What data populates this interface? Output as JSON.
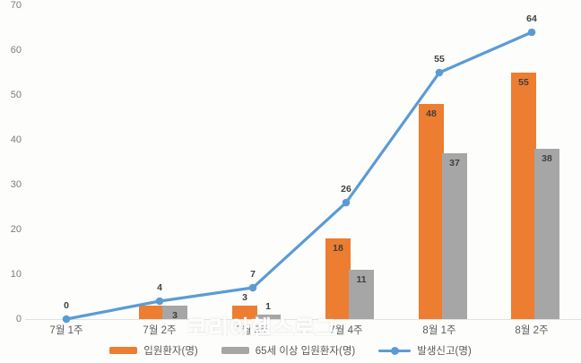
{
  "chart_data": {
    "type": "combo-bar-line",
    "title": "",
    "categories": [
      "7월 1주",
      "7월 2주",
      "7월 3주",
      "7월 4주",
      "8월 1주",
      "8월 2주"
    ],
    "series": [
      {
        "name": "입원환자(명)",
        "type": "bar",
        "color": "#ED7D31",
        "values": [
          0,
          3,
          3,
          18,
          48,
          55
        ],
        "labels": [
          "",
          "",
          "3",
          "18",
          "48",
          "55"
        ],
        "label_pos": [
          "",
          "",
          "out",
          "in",
          "in",
          "in"
        ]
      },
      {
        "name": "65세 이상 입원환자(명)",
        "type": "bar",
        "color": "#A6A6A6",
        "values": [
          0,
          3,
          1,
          11,
          37,
          38
        ],
        "labels": [
          "",
          "3",
          "1",
          "11",
          "37",
          "38"
        ],
        "label_pos": [
          "",
          "in",
          "out",
          "in",
          "in",
          "in"
        ]
      },
      {
        "name": "발생신고(명)",
        "type": "line",
        "color": "#5B9BD5",
        "values": [
          0,
          4,
          7,
          26,
          55,
          64
        ],
        "labels": [
          "0",
          "4",
          "7",
          "26",
          "55",
          "64"
        ]
      }
    ],
    "y_axis": {
      "min": 0,
      "max": 70,
      "step": 10,
      "ticks": [
        "0",
        "10",
        "20",
        "30",
        "40",
        "50",
        "60",
        "70"
      ]
    },
    "x_axis_label": "",
    "y_axis_label": "",
    "grid": false,
    "legend_position": "bottom"
  },
  "watermark": {
    "text": "코리아헬스로그"
  },
  "colors": {
    "bar_orange": "#ED7D31",
    "bar_gray": "#A6A6A6",
    "line_blue": "#5B9BD5",
    "axis_text": "#595959",
    "tick_text": "#7b7b7b",
    "data_label": "#3f3f3f",
    "baseline": "#e2e2e0",
    "background": "#fdfdfc"
  }
}
